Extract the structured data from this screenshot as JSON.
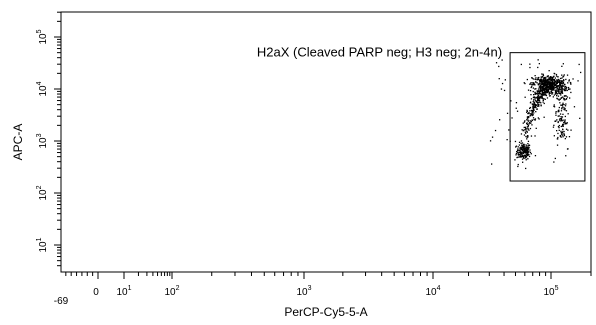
{
  "chart_data": {
    "type": "scatter",
    "title": "",
    "xlabel": "PerCP-Cy5-5-A",
    "ylabel": "APC-A",
    "x_scale": "biexponential",
    "y_scale": "log",
    "xlim": [
      -69,
      200000
    ],
    "ylim": [
      3,
      500000
    ],
    "x_ticks": [
      {
        "value": -69,
        "label": "-69"
      },
      {
        "value": 0,
        "label": "0"
      },
      {
        "value": 10,
        "label": "10^1"
      },
      {
        "value": 100,
        "label": "10^2"
      },
      {
        "value": 1000,
        "label": "10^3"
      },
      {
        "value": 10000,
        "label": "10^4"
      },
      {
        "value": 100000,
        "label": "10^5"
      }
    ],
    "y_ticks": [
      {
        "value": 10,
        "label": "10^1"
      },
      {
        "value": 100,
        "label": "10^2"
      },
      {
        "value": 1000,
        "label": "10^3"
      },
      {
        "value": 10000,
        "label": "10^4"
      },
      {
        "value": 100000,
        "label": "10^5"
      }
    ],
    "gate": {
      "label": "H2aX (Cleaved PARP neg; H3 neg; 2n-4n)",
      "x_range": [
        45000,
        180000
      ],
      "y_range": [
        170,
        50000
      ]
    },
    "populations": [
      {
        "description": "dense cluster",
        "x": 58000,
        "y": 650
      },
      {
        "description": "rising arc",
        "x": 65000,
        "y": 4000
      },
      {
        "description": "dense high cluster",
        "x": 100000,
        "y": 13000
      },
      {
        "description": "descending tail",
        "x": 120000,
        "y": 2000
      }
    ],
    "grid": false,
    "point_color": "#000000"
  }
}
